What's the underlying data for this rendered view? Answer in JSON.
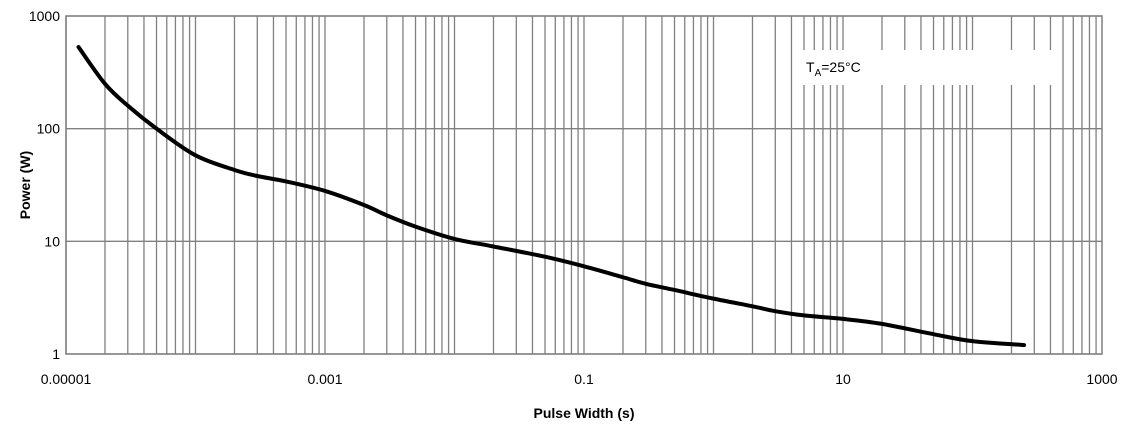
{
  "chart_data": {
    "type": "line",
    "title": "",
    "xlabel": "Pulse Width (s)",
    "ylabel": "Power (W)",
    "xscale": "log",
    "yscale": "log",
    "xlim": [
      1e-05,
      1000
    ],
    "ylim": [
      1,
      1000
    ],
    "grid": true,
    "x_tick_labels": [
      "0.00001",
      "0.001",
      "0.1",
      "10",
      "1000"
    ],
    "y_tick_labels": [
      "1",
      "10",
      "100",
      "1000"
    ],
    "annotation": {
      "main": "T",
      "sub": "A",
      "rest": "=25°C"
    },
    "series": [
      {
        "color": "#000000",
        "x": [
          1.25e-05,
          2e-05,
          3e-05,
          5e-05,
          0.0001,
          0.0002,
          0.0003,
          0.0005,
          0.001,
          0.002,
          0.003,
          0.005,
          0.01,
          0.02,
          0.05,
          0.1,
          0.2,
          0.3,
          0.5,
          1,
          2,
          3,
          5,
          10,
          20,
          50,
          100,
          250
        ],
        "y": [
          530,
          250,
          160,
          100,
          58,
          43,
          38,
          34,
          28,
          21,
          17,
          13.5,
          10.5,
          9,
          7.3,
          6,
          4.8,
          4.2,
          3.7,
          3.1,
          2.65,
          2.4,
          2.2,
          2.05,
          1.85,
          1.5,
          1.3,
          1.2
        ]
      }
    ]
  }
}
